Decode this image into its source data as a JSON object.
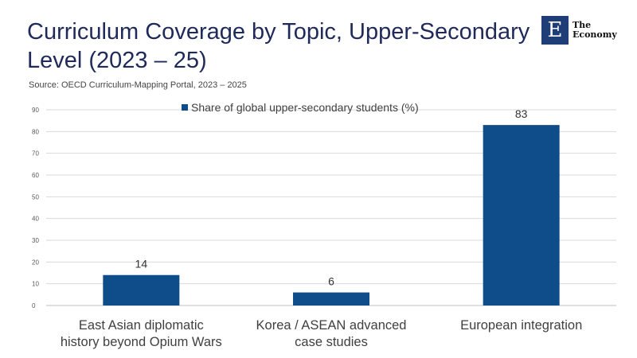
{
  "header": {
    "title": "Curriculum Coverage by Topic, Upper-Secondary Level (2023 – 25)",
    "source": "Source:  OECD Curriculum-Mapping Portal, 2023 – 2025"
  },
  "logo": {
    "mark": "E",
    "line1": "The",
    "line2": "Economy"
  },
  "colors": {
    "bar": "#0e4c8a",
    "title": "#1f2a5a",
    "grid": "#d9d9d9"
  },
  "chart_data": {
    "type": "bar",
    "categories": [
      [
        "East Asian diplomatic",
        "history beyond Opium Wars"
      ],
      [
        "Korea / ASEAN advanced",
        "case studies"
      ],
      [
        "European integration"
      ]
    ],
    "series": [
      {
        "name": "Share of global upper-secondary students (%)",
        "values": [
          14,
          6,
          83
        ]
      }
    ],
    "yticks": [
      0,
      10,
      20,
      30,
      40,
      50,
      60,
      70,
      80,
      90
    ],
    "ylim": [
      0,
      90
    ],
    "grid": true,
    "legend": "top-center",
    "data_labels": true
  }
}
